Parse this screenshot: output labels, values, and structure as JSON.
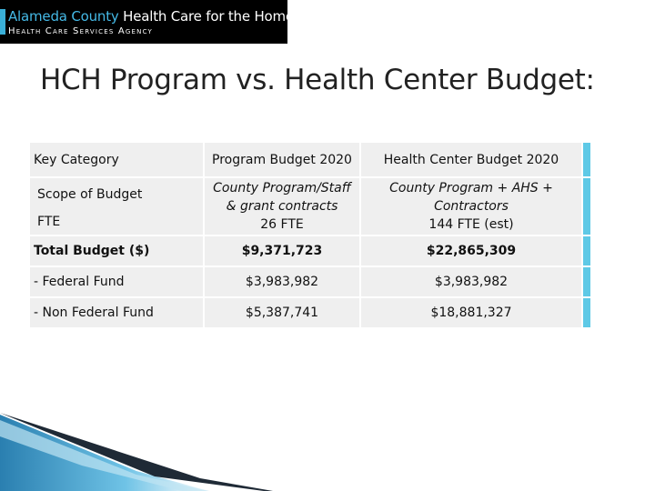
{
  "logo": {
    "county": "Alameda County",
    "org": "Health Care for the Homeless",
    "agency": "Health Care Services Agency"
  },
  "title": "HCH Program vs. Health Center Budget:",
  "table": {
    "headers": [
      "Key Category",
      "Program Budget 2020",
      "Health Center Budget 2020"
    ],
    "scope": {
      "label": "Scope of Budget",
      "fte_label": "FTE",
      "program_line1": "County Program/Staff",
      "program_line2": "& grant contracts",
      "program_fte": "26 FTE",
      "center_line1": "County Program + AHS +",
      "center_line2": "Contractors",
      "center_fte": "144 FTE   (est)"
    },
    "rows": [
      {
        "label": "Total Budget ($)",
        "program": "$9,371,723",
        "center": "$22,865,309"
      },
      {
        "label": "- Federal Fund",
        "program": "$3,983,982",
        "center": "$3,983,982"
      },
      {
        "label": "- Non Federal Fund",
        "program": "$5,387,741",
        "center": "$18,881,327"
      }
    ]
  },
  "colors": {
    "accent": "#5ec9e6",
    "logo_blue": "#45b9e6",
    "cell_bg": "#efefef"
  }
}
